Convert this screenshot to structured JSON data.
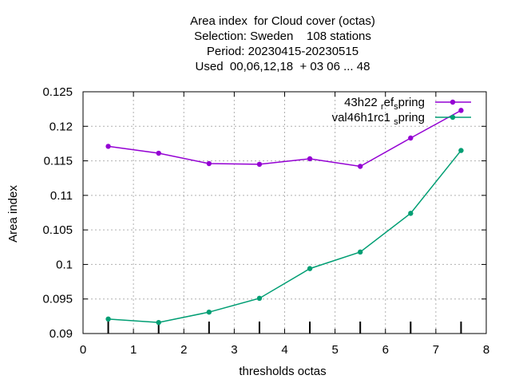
{
  "chart_data": {
    "type": "line",
    "title_lines": [
      "Area index  for Cloud cover (octas)",
      "Selection: Sweden    108 stations",
      "Period: 20230415-20230515",
      "Used  00,06,12,18  + 03 06 ... 48"
    ],
    "xlabel": "thresholds octas",
    "ylabel": "Area index",
    "xlim": [
      0,
      8
    ],
    "ylim": [
      0.09,
      0.125
    ],
    "xticks": [
      "0",
      "1",
      "2",
      "3",
      "4",
      "5",
      "6",
      "7",
      "8"
    ],
    "yticks": [
      "0.09",
      "0.095",
      "0.1",
      "0.105",
      "0.11",
      "0.115",
      "0.12",
      "0.125"
    ],
    "grid": true,
    "legend_position": "top-right",
    "x": [
      0.5,
      1.5,
      2.5,
      3.5,
      4.5,
      5.5,
      6.5,
      7.5
    ],
    "series": [
      {
        "name": "43h22 ref spring",
        "legend_main": "43h22 ",
        "legend_sub1": "r",
        "legend_mid": "ef",
        "legend_sub2": "s",
        "legend_end": "pring",
        "color": "#9400d3",
        "values": [
          0.1171,
          0.1161,
          0.1146,
          0.1145,
          0.1153,
          0.1142,
          0.1183,
          0.1223
        ]
      },
      {
        "name": "val46h1rc1 spring",
        "legend_main": "val46h1rc1 ",
        "legend_sub2": "s",
        "legend_end": "pring",
        "color": "#009e73",
        "values": [
          0.0921,
          0.0916,
          0.0931,
          0.0951,
          0.0994,
          0.1018,
          0.1074,
          0.1165
        ]
      }
    ]
  }
}
